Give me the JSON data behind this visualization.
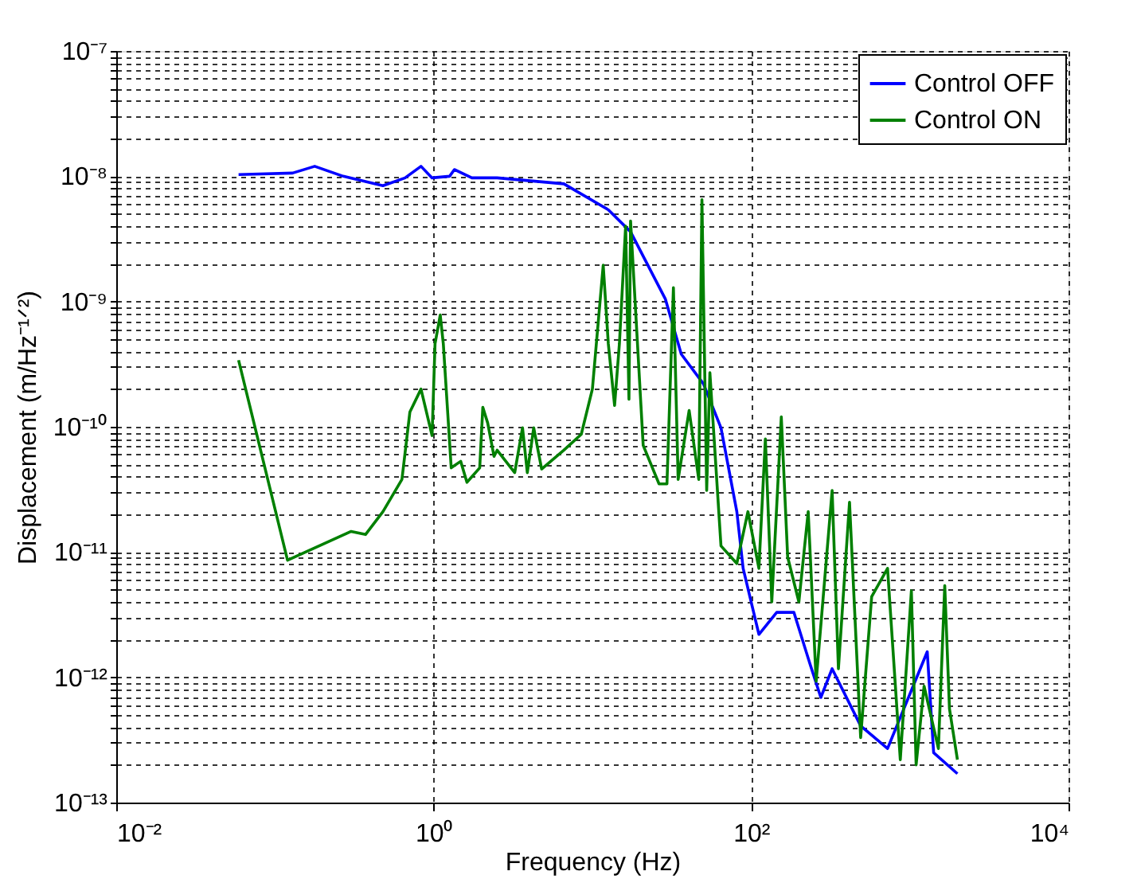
{
  "chart_data": {
    "type": "line",
    "xlabel": "Frequency (Hz)",
    "ylabel": "Displacement (m/Hz⁻¹ᐟ²)",
    "log": "xy",
    "grid": true,
    "legend": "top right",
    "marker": "none",
    "line_style": "solid",
    "xlim": [
      0.01,
      10000
    ],
    "ylim": [
      1e-13,
      1e-07
    ],
    "xticks": [
      {
        "value": 0.01,
        "label": "10⁻²"
      },
      {
        "value": 1,
        "label": "10⁰"
      },
      {
        "value": 100,
        "label": "10²"
      },
      {
        "value": 10000,
        "label": "10⁴"
      }
    ],
    "yticks": [
      {
        "value": 1e-13,
        "label": "10⁻¹³"
      },
      {
        "value": 2e-13,
        "label": null
      },
      {
        "value": 3e-13,
        "label": null
      },
      {
        "value": 4e-13,
        "label": null
      },
      {
        "value": 5e-13,
        "label": null
      },
      {
        "value": 6e-13,
        "label": null
      },
      {
        "value": 7e-13,
        "label": null
      },
      {
        "value": 8e-13,
        "label": null
      },
      {
        "value": 9e-13,
        "label": null
      },
      {
        "value": 1e-12,
        "label": "10⁻¹²"
      },
      {
        "value": 2e-12,
        "label": null
      },
      {
        "value": 3e-12,
        "label": null
      },
      {
        "value": 4e-12,
        "label": null
      },
      {
        "value": 5e-12,
        "label": null
      },
      {
        "value": 6e-12,
        "label": null
      },
      {
        "value": 7e-12,
        "label": null
      },
      {
        "value": 8e-12,
        "label": null
      },
      {
        "value": 9e-12,
        "label": null
      },
      {
        "value": 1e-11,
        "label": "10⁻¹¹"
      },
      {
        "value": 2e-11,
        "label": null
      },
      {
        "value": 3e-11,
        "label": null
      },
      {
        "value": 4e-11,
        "label": null
      },
      {
        "value": 5e-11,
        "label": null
      },
      {
        "value": 6e-11,
        "label": null
      },
      {
        "value": 7e-11,
        "label": null
      },
      {
        "value": 8e-11,
        "label": null
      },
      {
        "value": 9e-11,
        "label": null
      },
      {
        "value": 1e-10,
        "label": "10⁻¹⁰"
      },
      {
        "value": 2e-10,
        "label": null
      },
      {
        "value": 3e-10,
        "label": null
      },
      {
        "value": 4e-10,
        "label": null
      },
      {
        "value": 5e-10,
        "label": null
      },
      {
        "value": 6e-10,
        "label": null
      },
      {
        "value": 7e-10,
        "label": null
      },
      {
        "value": 8e-10,
        "label": null
      },
      {
        "value": 9e-10,
        "label": null
      },
      {
        "value": 1e-09,
        "label": "10⁻⁹"
      },
      {
        "value": 2e-09,
        "label": null
      },
      {
        "value": 3e-09,
        "label": null
      },
      {
        "value": 4e-09,
        "label": null
      },
      {
        "value": 5e-09,
        "label": null
      },
      {
        "value": 6e-09,
        "label": null
      },
      {
        "value": 7e-09,
        "label": null
      },
      {
        "value": 8e-09,
        "label": null
      },
      {
        "value": 9e-09,
        "label": null
      },
      {
        "value": 1e-08,
        "label": "10⁻⁸"
      },
      {
        "value": 2e-08,
        "label": null
      },
      {
        "value": 3e-08,
        "label": null
      },
      {
        "value": 4e-08,
        "label": null
      },
      {
        "value": 5e-08,
        "label": null
      },
      {
        "value": 6e-08,
        "label": null
      },
      {
        "value": 7e-08,
        "label": null
      },
      {
        "value": 8e-08,
        "label": null
      },
      {
        "value": 9e-08,
        "label": null
      },
      {
        "value": 1e-07,
        "label": "10⁻⁷"
      }
    ],
    "series": [
      {
        "name": "Control OFF",
        "color": "#0000ff",
        "x": [
          0.059,
          0.129,
          0.178,
          0.269,
          0.479,
          0.661,
          0.832,
          0.977,
          1.26,
          1.35,
          1.74,
          2.51,
          6.61,
          12.6,
          17.4,
          28.8,
          36.3,
          50.1,
          64.6,
          81.3,
          89.1,
          112,
          145,
          186,
          234,
          275,
          324,
          490,
          724,
          1288,
          1413,
          1995
        ],
        "values": [
          1.03e-08,
          1.06e-08,
          1.2e-08,
          1e-08,
          8.4e-09,
          9.7e-09,
          1.2e-08,
          9.7e-09,
          1e-08,
          1.13e-08,
          9.7e-09,
          9.7e-09,
          8.7e-09,
          5.4e-09,
          3.6e-09,
          1.05e-09,
          3.8e-10,
          2.2e-10,
          9.8e-11,
          2.1e-11,
          7.4e-12,
          2.2e-12,
          3.3e-12,
          3.3e-12,
          1.3e-12,
          6.9e-13,
          1.17e-12,
          4.1e-13,
          2.7e-13,
          1.6e-12,
          2.5e-13,
          1.7e-13
        ]
      },
      {
        "name": "Control ON",
        "color": "#008000",
        "x": [
          0.059,
          0.12,
          0.302,
          0.372,
          0.479,
          0.631,
          0.708,
          0.832,
          0.977,
          1.02,
          1.1,
          1.15,
          1.29,
          1.48,
          1.62,
          1.95,
          2.04,
          2.19,
          2.4,
          2.51,
          3.24,
          3.63,
          3.89,
          4.27,
          4.79,
          6.61,
          8.51,
          10.0,
          11.7,
          12.6,
          13.8,
          14.8,
          16.2,
          17.0,
          17.4,
          20.9,
          26.3,
          29.5,
          32.4,
          34.7,
          40.7,
          46.8,
          49.0,
          52.5,
          55.0,
          64.6,
          81.3,
          95.5,
          112,
          123,
          135,
          155,
          170,
          200,
          229,
          257,
          324,
          355,
          417,
          490,
          575,
          724,
          871,
          1023,
          1096,
          1230,
          1514,
          1660,
          1778,
          1995
        ],
        "values": [
          3.4e-10,
          8.6e-12,
          1.46e-11,
          1.38e-11,
          2.1e-11,
          3.8e-11,
          1.31e-10,
          2e-10,
          8.5e-11,
          4.6e-10,
          7.8e-10,
          4.6e-10,
          4.7e-11,
          5.3e-11,
          3.6e-11,
          4.7e-11,
          1.43e-10,
          1.07e-10,
          5.8e-11,
          6.5e-11,
          4.3e-11,
          9.8e-11,
          4.3e-11,
          9.8e-11,
          4.6e-11,
          6.5e-11,
          8.7e-11,
          2e-10,
          1.95e-09,
          4.6e-10,
          1.48e-10,
          4.6e-10,
          4e-09,
          1.66e-10,
          4.4e-09,
          7.1e-11,
          3.5e-11,
          3.5e-11,
          1.29e-09,
          3.8e-11,
          1.35e-10,
          3.8e-11,
          6.5e-09,
          3.1e-11,
          2.7e-10,
          1.12e-11,
          8.1e-12,
          2.1e-11,
          7.4e-12,
          8e-11,
          4e-12,
          1.2e-10,
          9.1e-12,
          4e-12,
          2.1e-11,
          9.3e-13,
          3.1e-11,
          1.17e-12,
          2.5e-11,
          3.3e-13,
          4.4e-12,
          7.4e-12,
          2.2e-13,
          4.9e-12,
          2e-13,
          8.5e-13,
          2.7e-13,
          5.4e-12,
          5.6e-13,
          2.2e-13
        ]
      }
    ]
  }
}
